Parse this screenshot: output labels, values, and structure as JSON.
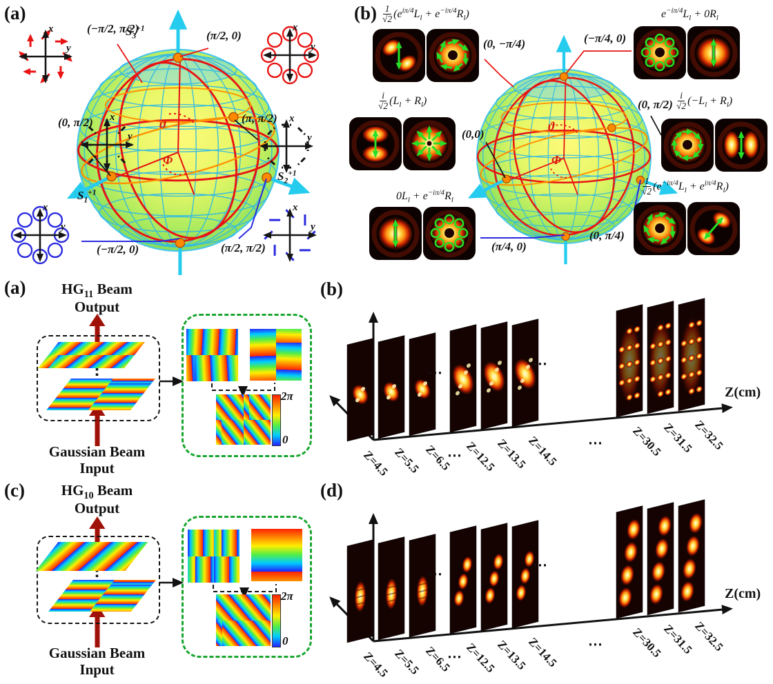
{
  "axes": {
    "x": "x",
    "y": "y"
  },
  "top": {
    "a": {
      "tag": "(a)",
      "s3": "S_{3}^{+1}",
      "s1": "S_{1}^{+1}",
      "s2": "S_{2}^{+1}",
      "theta": "ϑ",
      "phi": "Φ",
      "coords": {
        "nl": "(−π/2, π/2)",
        "n": "(π/2, 0)",
        "w": "(0, π/2)",
        "e": "(π, π/2)",
        "s": "(−π/2, 0)",
        "se": "(π/2, π/2)"
      }
    },
    "b": {
      "tag": "(b)",
      "theta": "ϑ",
      "phi": "Φ",
      "coords": {
        "c1": "(0, −π/4)",
        "c2": "(−π/4, 0)",
        "c3": "(0,0)",
        "c4": "(0, π/2)",
        "c5": "(π/4, 0)",
        "c6": "(0, π/4)"
      },
      "formulas": {
        "f1": {
          "num": "1",
          "den": "√2",
          "expr": "(e^{iπ/4}L_{l} + e^{−iπ/4}R_{l})"
        },
        "f2": {
          "expr": "e^{−iπ/4}L_{l} + 0R_{l}"
        },
        "f3": {
          "num": "i",
          "den": "√2",
          "expr": "(L_{l} + R_{l})"
        },
        "f4": {
          "num": "i",
          "den": "√2",
          "expr": "(−L_{l} + R_{l})"
        },
        "f5": {
          "expr": "0L_{l} + e^{−iπ/4}R_{l}"
        },
        "f6": {
          "num": "1",
          "den": "√2",
          "expr": "(e^{−iπ/4}L_{l} + e^{iπ/4}R_{l})"
        }
      }
    }
  },
  "bottom": {
    "a": {
      "tag": "(a)",
      "out1": "HG_{11} Beam",
      "out2": "Output",
      "in1": "Gaussian Beam",
      "in2": "Input",
      "cb_top": "2π",
      "cb_bot": "0"
    },
    "b": {
      "tag": "(b)",
      "z_axis": "Z(cm)",
      "dots": "⋯",
      "z": [
        "Z=4.5",
        "Z=5.5",
        "Z=6.5",
        "Z=12.5",
        "Z=13.5",
        "Z=14.5",
        "Z=30.5",
        "Z=31.5",
        "Z=32.5"
      ]
    },
    "c": {
      "tag": "(c)",
      "out1": "HG_{10} Beam",
      "out2": "Output",
      "in1": "Gaussian Beam",
      "in2": "Input",
      "cb_top": "2π",
      "cb_bot": "0"
    },
    "d": {
      "tag": "(d)",
      "z_axis": "Z(cm)",
      "dots": "⋯",
      "z": [
        "Z=4.5",
        "Z=5.5",
        "Z=6.5",
        "Z=12.5",
        "Z=13.5",
        "Z=14.5",
        "Z=30.5",
        "Z=31.5",
        "Z=32.5"
      ]
    }
  },
  "colors": {
    "sphere_grid": "#2fb9e6",
    "great_circle": "#e81313",
    "tilt_circle": "#ff9100",
    "axis_arrow": "#25ccee",
    "marker_dot": "#ff8a00",
    "overlay_green": "#27e027",
    "leader_blue": "#2a2ae0",
    "beam_arrow_red": "#a01208",
    "green_box": "#18a62e"
  }
}
